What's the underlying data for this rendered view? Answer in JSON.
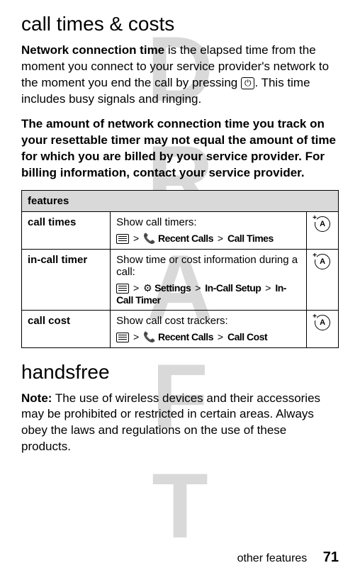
{
  "watermark": "DRAFT",
  "heading1": "call times & costs",
  "para1_a": "Network connection time",
  "para1_b": " is the elapsed time from the moment you connect to your service provider's network to the moment you end the call by pressing ",
  "para1_key": "⏻",
  "para1_c": ". This time includes busy signals and ringing.",
  "para2": "The amount of network connection time you track on your resettable timer may not equal the amount of time for which you are billed by your service provider. For billing information, contact your service provider.",
  "table": {
    "header": "features",
    "rows": [
      {
        "feature": "call times",
        "desc": "Show call timers:",
        "path": [
          " > ",
          "📞",
          " Recent Calls",
          " > ",
          "Call Times"
        ]
      },
      {
        "feature": "in-call timer",
        "desc": "Show time or cost information during a call:",
        "path": [
          " > ",
          "⚙",
          " Settings",
          " > ",
          "In-Call Setup",
          " > ",
          "In-Call Timer"
        ]
      },
      {
        "feature": "call cost",
        "desc": "Show call cost trackers:",
        "path": [
          " > ",
          "📞",
          " Recent Calls",
          " > ",
          "Call Cost"
        ]
      }
    ]
  },
  "heading2": "handsfree",
  "para3_a": "Note:",
  "para3_b": " The use of wireless devices and their accessories may be prohibited or restricted in certain areas. Always obey the laws and regulations on the use of these products.",
  "footer_text": "other features",
  "footer_page": "71"
}
